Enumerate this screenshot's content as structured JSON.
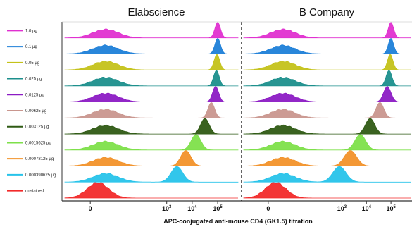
{
  "chart_data": {
    "type": "area",
    "subtype": "flow-cytometry-histogram-stack",
    "panels": [
      "Elabscience",
      "B Company"
    ],
    "xlabel": "APC-conjugated anti-mouse CD4 (GK1.5) titration",
    "x_ticks": [
      {
        "value": 0,
        "label": "0"
      },
      {
        "value": 3,
        "label": "10",
        "exp": "3"
      },
      {
        "value": 4,
        "label": "10",
        "exp": "4"
      },
      {
        "value": 5,
        "label": "10",
        "exp": "5"
      }
    ],
    "x_scale": "biexponential",
    "xlim": [
      -1.0,
      5.8
    ],
    "series": [
      {
        "name": "1.0 µg",
        "color": "#e030d0",
        "neg": [
          0.6,
          0.5
        ],
        "pos": [
          [
            5.0,
            0.11
          ]
        ],
        "posB": [
          [
            5.0,
            0.11
          ]
        ]
      },
      {
        "name": "0.1 µg",
        "color": "#1e7fd8",
        "neg": [
          0.6,
          0.5
        ],
        "pos": [
          [
            5.0,
            0.11
          ]
        ],
        "posB": [
          [
            5.0,
            0.11
          ]
        ]
      },
      {
        "name": "0.05 µg",
        "color": "#c4c21a",
        "neg": [
          0.6,
          0.5
        ],
        "pos": [
          [
            4.97,
            0.11
          ]
        ],
        "posB": [
          [
            4.97,
            0.11
          ]
        ]
      },
      {
        "name": "0.025 µg",
        "color": "#1c8f8c",
        "neg": [
          0.6,
          0.5
        ],
        "pos": [
          [
            4.95,
            0.11
          ]
        ],
        "posB": [
          [
            4.92,
            0.12
          ]
        ]
      },
      {
        "name": "0.0125 µg",
        "color": "#8c1bc4",
        "neg": [
          0.6,
          0.5
        ],
        "pos": [
          [
            4.92,
            0.12
          ]
        ],
        "posB": [
          [
            4.85,
            0.15
          ]
        ]
      },
      {
        "name": "0.00625 µg",
        "color": "#c9968e",
        "neg": [
          0.6,
          0.5
        ],
        "pos": [
          [
            4.75,
            0.13
          ]
        ],
        "posB": [
          [
            4.55,
            0.16
          ]
        ]
      },
      {
        "name": "0.003125 µg",
        "color": "#2f5a14",
        "neg": [
          0.6,
          0.5
        ],
        "pos": [
          [
            4.5,
            0.17
          ]
        ],
        "posB": [
          [
            4.15,
            0.19
          ]
        ]
      },
      {
        "name": "0.0015625 µg",
        "color": "#7ee04a",
        "neg": [
          0.6,
          0.5
        ],
        "pos": [
          [
            4.15,
            0.19
          ]
        ],
        "posB": [
          [
            3.75,
            0.22
          ]
        ]
      },
      {
        "name": "0.00078125 µg",
        "color": "#f2922a",
        "neg": [
          0.6,
          0.5
        ],
        "pos": [
          [
            3.75,
            0.2
          ]
        ],
        "posB": [
          [
            3.35,
            0.25
          ]
        ]
      },
      {
        "name": "0.000390625 µg",
        "color": "#27c3ea",
        "neg": [
          0.6,
          0.5
        ],
        "pos": [
          [
            3.4,
            0.23
          ]
        ],
        "posB": [
          [
            2.9,
            0.27
          ]
        ]
      },
      {
        "name": "unstained",
        "color": "#f22a2a",
        "neg": [
          0.3,
          0.42
        ],
        "pos": [],
        "posB": []
      }
    ]
  }
}
